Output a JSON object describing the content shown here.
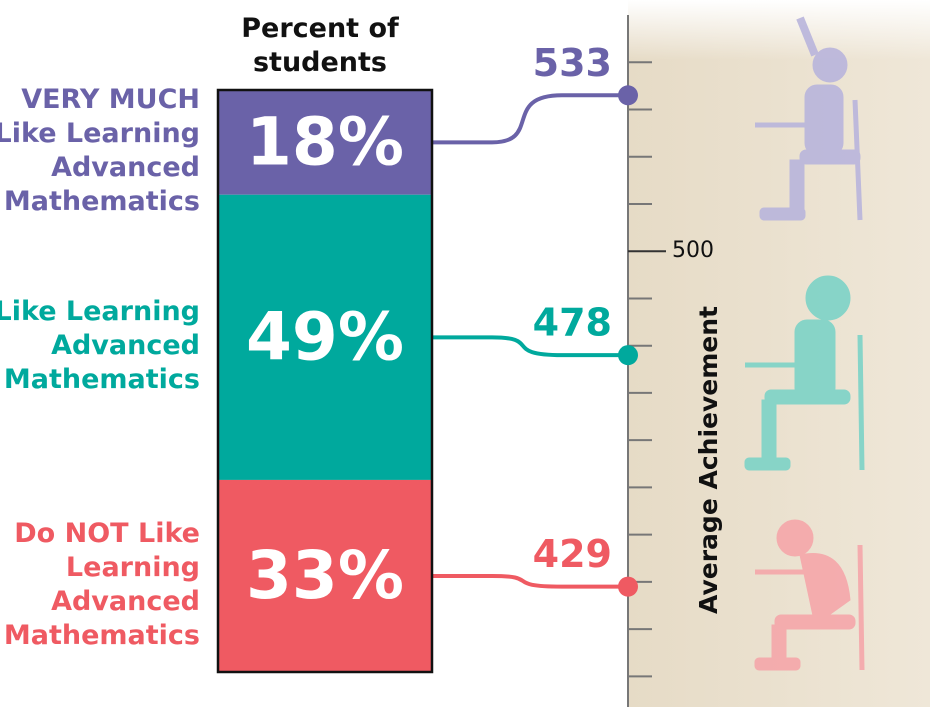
{
  "chart_data": {
    "type": "stacked-bar",
    "title": "Percent of\nstudents",
    "categories": [
      "VERY MUCH\nLike Learning\nAdvanced\nMathematics",
      "Like Learning\nAdvanced\nMathematics",
      "Do NOT Like\nLearning\nAdvanced\nMathematics"
    ],
    "colors": [
      "#6a62a8",
      "#00a99d",
      "#ef5a62"
    ],
    "values": [
      18,
      49,
      33
    ],
    "value_labels": [
      "18%",
      "49%",
      "33%"
    ],
    "achievement": {
      "label": "Average Achievement",
      "values": [
        533,
        478,
        429
      ],
      "ylim": [
        405,
        550
      ],
      "yticks": [
        500
      ],
      "minor_yticks": [
        410,
        420,
        430,
        440,
        450,
        460,
        470,
        480,
        490,
        510,
        520,
        530,
        540
      ]
    }
  }
}
